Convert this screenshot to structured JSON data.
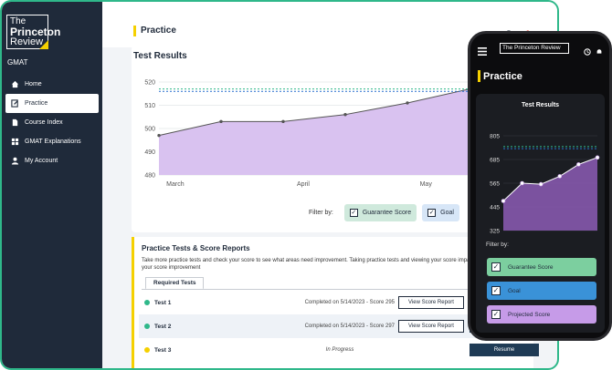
{
  "brand": {
    "logo_line1": "The",
    "logo_line2": "Princeton",
    "logo_line3": "Review",
    "subtitle": "GMAT",
    "accent": "#f5d000"
  },
  "sidebar": {
    "items": [
      {
        "label": "Home",
        "icon": "home-icon"
      },
      {
        "label": "Practice",
        "icon": "edit-icon",
        "active": true
      },
      {
        "label": "Course Index",
        "icon": "document-icon"
      },
      {
        "label": "GMAT Explanations",
        "icon": "grid-icon"
      },
      {
        "label": "My Account",
        "icon": "user-icon"
      }
    ]
  },
  "header": {
    "title": "Practice",
    "icons": [
      "clock-icon",
      "bell-icon"
    ]
  },
  "results": {
    "title": "Test Results",
    "filter_label": "Filter by:",
    "filters": [
      {
        "label": "Guarantee Score",
        "color": "#cfe9dc",
        "checked": true
      },
      {
        "label": "Goal",
        "color": "#d7e6f7",
        "checked": true
      }
    ]
  },
  "chart_data": [
    {
      "type": "area",
      "y_ticks": [
        480,
        490,
        500,
        510,
        520
      ],
      "ylim": [
        480,
        520
      ],
      "x_ticks": [
        "March",
        "April",
        "May"
      ],
      "series": [
        {
          "values": [
            497,
            503,
            503,
            506,
            511,
            517,
            518
          ]
        }
      ],
      "reference_lines": [
        {
          "value": 517,
          "color": "#2fb88a",
          "style": "dashed"
        },
        {
          "value": 516,
          "color": "#2a6fcf",
          "style": "dashed"
        }
      ],
      "fill_color": "#d9c2f0"
    },
    {
      "type": "area",
      "title": "Test Results",
      "y_ticks": [
        325,
        445,
        565,
        685,
        805
      ],
      "ylim": [
        325,
        805
      ],
      "series": [
        {
          "values": [
            475,
            565,
            560,
            600,
            660,
            695
          ]
        }
      ],
      "reference_lines": [
        {
          "value": 750,
          "color": "#2fb88a",
          "style": "dashed"
        },
        {
          "value": 740,
          "color": "#2a6fcf",
          "style": "dashed"
        }
      ],
      "fill_color": "#8c5cb5"
    }
  ],
  "tests": {
    "title": "Practice Tests & Score Reports",
    "description": "Take more practice tests and check your score to see what areas need improvement. Taking practice tests and viewing your score impact on your score improvement",
    "tab": "Required Tests",
    "rows": [
      {
        "name": "Test 1",
        "info": "Completed on 5/14/2023 - Score 295",
        "status_color": "#2fb88a",
        "action": "View Score Report"
      },
      {
        "name": "Test 2",
        "info": "Completed on 5/14/2023 - Score 297",
        "status_color": "#2fb88a",
        "action": "View Score Report"
      },
      {
        "name": "Test 3",
        "info": "In Progress",
        "status_color": "#f5d000",
        "action": "Resume"
      }
    ]
  },
  "phone": {
    "logo": "The Princeton Review",
    "title": "Practice",
    "filter_label": "Filter by:",
    "filters": [
      {
        "label": "Guarantee Score",
        "color": "#7ccf9f",
        "checked": true
      },
      {
        "label": "Goal",
        "color": "#3a92d8",
        "checked": true
      },
      {
        "label": "Projected Score",
        "color": "#c69be8",
        "checked": true
      }
    ]
  }
}
